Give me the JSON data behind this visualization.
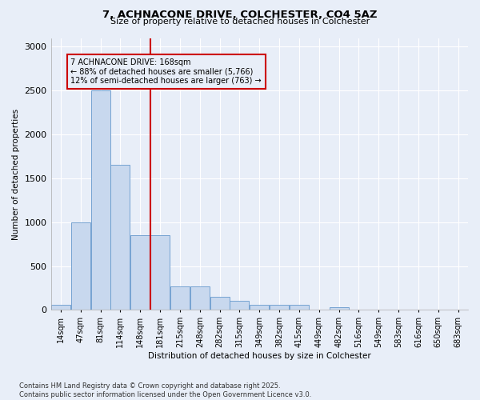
{
  "title_line1": "7, ACHNACONE DRIVE, COLCHESTER, CO4 5AZ",
  "title_line2": "Size of property relative to detached houses in Colchester",
  "xlabel": "Distribution of detached houses by size in Colchester",
  "ylabel": "Number of detached properties",
  "categories": [
    "14sqm",
    "47sqm",
    "81sqm",
    "114sqm",
    "148sqm",
    "181sqm",
    "215sqm",
    "248sqm",
    "282sqm",
    "315sqm",
    "349sqm",
    "382sqm",
    "415sqm",
    "449sqm",
    "482sqm",
    "516sqm",
    "549sqm",
    "583sqm",
    "616sqm",
    "650sqm",
    "683sqm"
  ],
  "values": [
    55,
    1000,
    2500,
    1650,
    850,
    850,
    270,
    270,
    150,
    100,
    60,
    60,
    60,
    0,
    30,
    0,
    0,
    0,
    0,
    0,
    0
  ],
  "bar_color": "#c8d8ee",
  "bar_edgecolor": "#6699cc",
  "vline_color": "#cc0000",
  "vline_index": 4.5,
  "annotation_text": "7 ACHNACONE DRIVE: 168sqm\n← 88% of detached houses are smaller (5,766)\n12% of semi-detached houses are larger (763) →",
  "annotation_box_edgecolor": "#cc0000",
  "ylim": [
    0,
    3100
  ],
  "yticks": [
    0,
    500,
    1000,
    1500,
    2000,
    2500,
    3000
  ],
  "background_color": "#e8eef8",
  "grid_color": "#ffffff",
  "footer_line1": "Contains HM Land Registry data © Crown copyright and database right 2025.",
  "footer_line2": "Contains public sector information licensed under the Open Government Licence v3.0."
}
